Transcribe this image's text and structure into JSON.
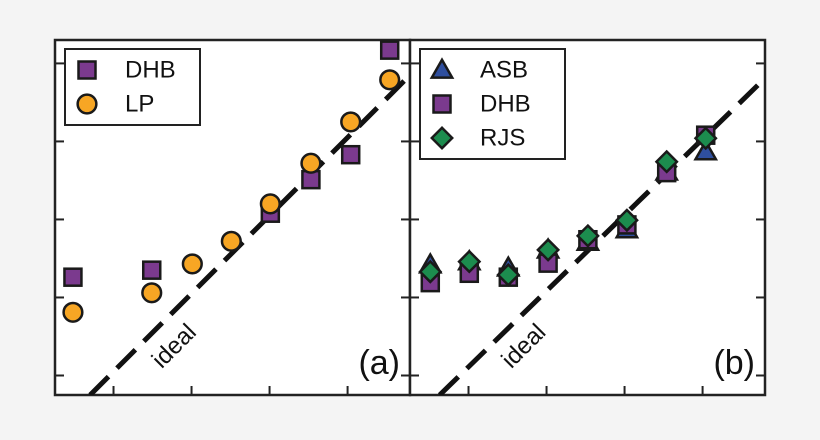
{
  "chart_data": [
    {
      "type": "scatter",
      "panel_label": "(a)",
      "xlim": [
        0,
        4.55
      ],
      "ylim": [
        0,
        4.55
      ],
      "xticks": [
        0.75,
        1.75,
        2.75,
        3.75
      ],
      "yticks": [
        0.25,
        1.25,
        2.25,
        3.25,
        4.25
      ],
      "legend": "upper-left",
      "reference_line": {
        "label": "ideal",
        "x": [
          0.45,
          4.55
        ],
        "y": [
          0,
          4.1
        ]
      },
      "series": [
        {
          "name": "DHB",
          "color": "#7b3a8e",
          "marker": "square",
          "x": [
            0.23,
            1.24,
            2.76,
            3.28,
            3.79,
            4.29
          ],
          "values": [
            1.51,
            1.6,
            2.33,
            2.76,
            3.08,
            4.42
          ]
        },
        {
          "name": "LP",
          "color": "#f7a624",
          "marker": "circle",
          "x": [
            0.23,
            1.24,
            1.76,
            2.26,
            2.76,
            3.28,
            3.79,
            4.29
          ],
          "values": [
            1.06,
            1.31,
            1.68,
            1.97,
            2.45,
            2.97,
            3.5,
            4.04
          ]
        }
      ]
    },
    {
      "type": "scatter",
      "panel_label": "(b)",
      "xlim": [
        0,
        4.55
      ],
      "ylim": [
        0,
        4.55
      ],
      "xticks": [
        0.75,
        1.75,
        2.75,
        3.75
      ],
      "yticks": [
        0.25,
        1.25,
        2.25,
        3.25,
        4.25
      ],
      "legend": "upper-left",
      "reference_line": {
        "label": "ideal",
        "x": [
          0.38,
          4.55
        ],
        "y": [
          0,
          4.06
        ]
      },
      "series": [
        {
          "name": "ASB",
          "color": "#2f4f9e",
          "marker": "triangle",
          "x": [
            0.26,
            0.76,
            1.26,
            1.77,
            2.28,
            2.78,
            3.29,
            3.79
          ],
          "values": [
            1.67,
            1.71,
            1.63,
            1.86,
            1.96,
            2.12,
            2.86,
            3.12
          ]
        },
        {
          "name": "DHB",
          "color": "#7b3a8e",
          "marker": "square",
          "x": [
            0.26,
            0.76,
            1.26,
            1.77,
            2.28,
            2.78,
            3.29,
            3.79
          ],
          "values": [
            1.44,
            1.56,
            1.51,
            1.69,
            1.99,
            2.18,
            2.85,
            3.33
          ]
        },
        {
          "name": "RJS",
          "color": "#1c8c4e",
          "marker": "diamond",
          "x": [
            0.26,
            0.76,
            1.26,
            1.77,
            2.28,
            2.78,
            3.29,
            3.79
          ],
          "values": [
            1.58,
            1.71,
            1.54,
            1.86,
            2.04,
            2.24,
            2.99,
            3.29
          ]
        }
      ]
    }
  ]
}
